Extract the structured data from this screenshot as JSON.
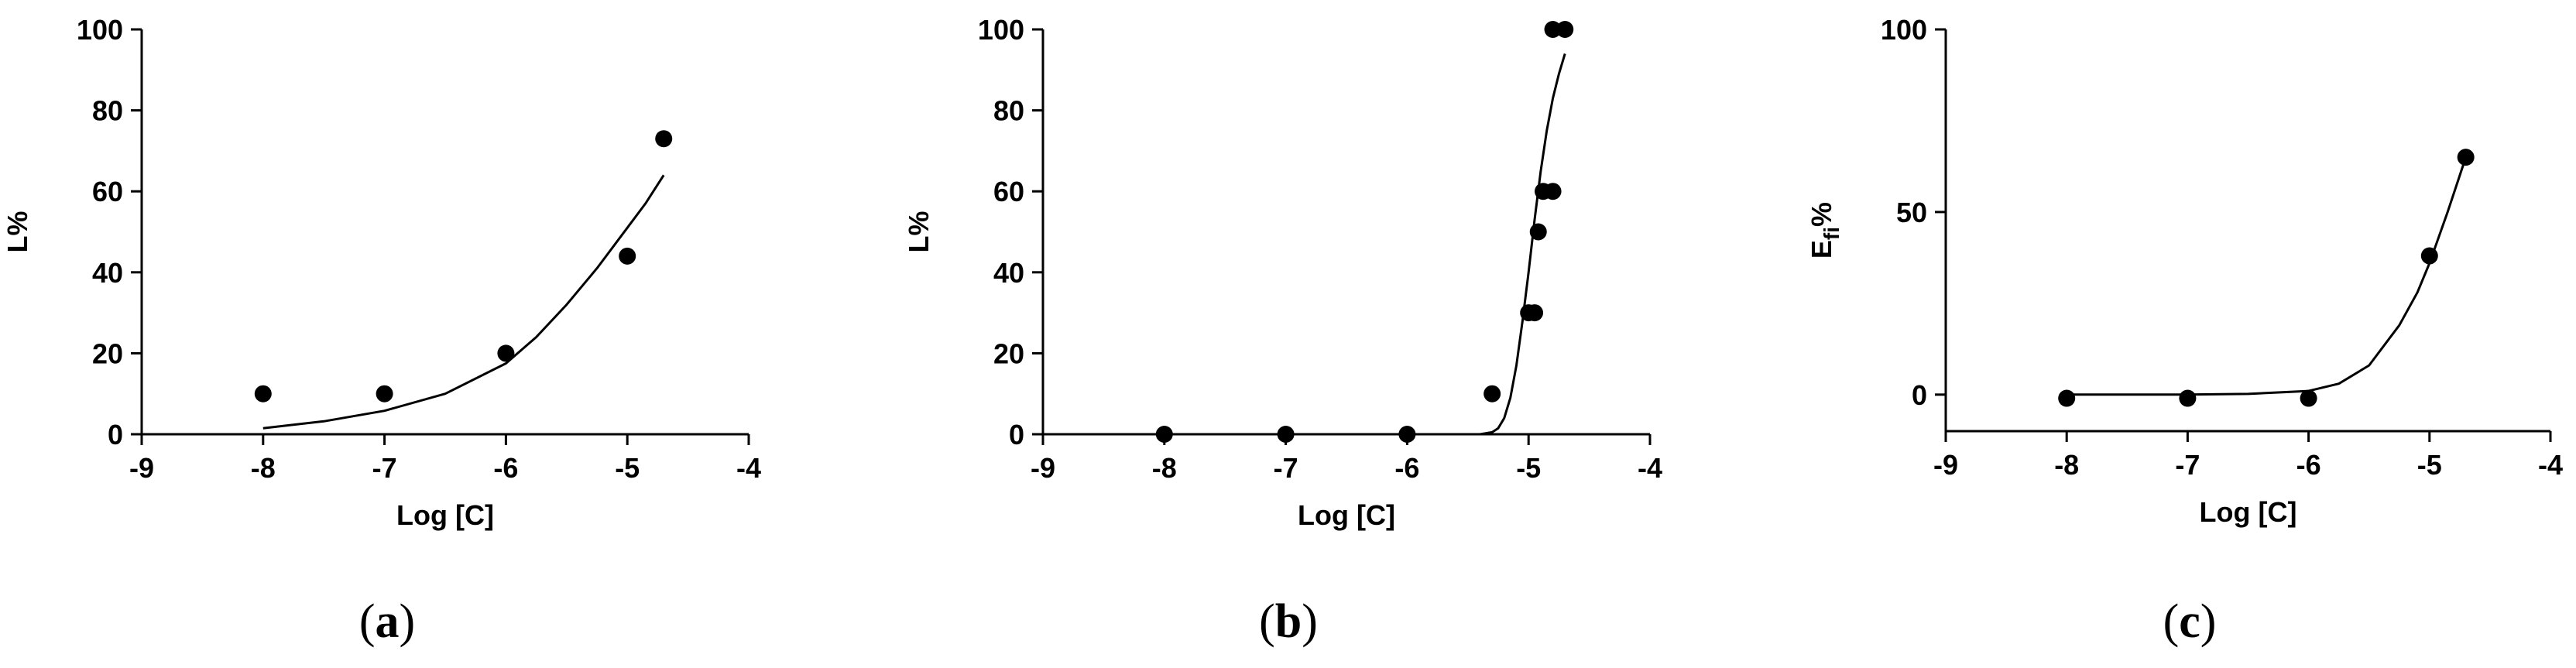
{
  "chart_data": [
    {
      "type": "scatter",
      "panel_label": "a",
      "xlabel": "Log [C]",
      "ylabel": "L%",
      "ylabel_sub": "",
      "xlim": [
        -9,
        -4
      ],
      "ylim": [
        0,
        100
      ],
      "xticks": [
        "-9",
        "-8",
        "-7",
        "-6",
        "-5",
        "-4"
      ],
      "yticks": [
        "0",
        "20",
        "40",
        "60",
        "80",
        "100"
      ],
      "grid": false,
      "points": [
        {
          "x": -8,
          "y": 10
        },
        {
          "x": -7,
          "y": 10
        },
        {
          "x": -6,
          "y": 20
        },
        {
          "x": -5,
          "y": 44
        },
        {
          "x": -4.7,
          "y": 73
        }
      ],
      "fit_curve": [
        [
          -8,
          1.5
        ],
        [
          -7.5,
          3.2
        ],
        [
          -7,
          5.8
        ],
        [
          -6.5,
          10
        ],
        [
          -6,
          17.5
        ],
        [
          -5.75,
          24
        ],
        [
          -5.5,
          32
        ],
        [
          -5.25,
          41
        ],
        [
          -5,
          51
        ],
        [
          -4.85,
          57
        ],
        [
          -4.7,
          64
        ]
      ]
    },
    {
      "type": "scatter",
      "panel_label": "b",
      "xlabel": "Log [C]",
      "ylabel": "L%",
      "ylabel_sub": "",
      "xlim": [
        -9,
        -4
      ],
      "ylim": [
        0,
        100
      ],
      "xticks": [
        "-9",
        "-8",
        "-7",
        "-6",
        "-5",
        "-4"
      ],
      "yticks": [
        "0",
        "20",
        "40",
        "60",
        "80",
        "100"
      ],
      "grid": false,
      "points": [
        {
          "x": -8,
          "y": 0
        },
        {
          "x": -7,
          "y": 0
        },
        {
          "x": -6,
          "y": 0
        },
        {
          "x": -5.3,
          "y": 10
        },
        {
          "x": -5,
          "y": 30
        },
        {
          "x": -4.95,
          "y": 30
        },
        {
          "x": -4.92,
          "y": 50
        },
        {
          "x": -4.88,
          "y": 60
        },
        {
          "x": -4.8,
          "y": 60
        },
        {
          "x": -4.8,
          "y": 100
        },
        {
          "x": -4.7,
          "y": 100
        }
      ],
      "fit_curve": [
        [
          -8,
          0
        ],
        [
          -6,
          0
        ],
        [
          -5.4,
          0
        ],
        [
          -5.3,
          0.5
        ],
        [
          -5.25,
          1.5
        ],
        [
          -5.2,
          4
        ],
        [
          -5.15,
          9
        ],
        [
          -5.1,
          17
        ],
        [
          -5.05,
          28
        ],
        [
          -5,
          40
        ],
        [
          -4.95,
          53
        ],
        [
          -4.9,
          65
        ],
        [
          -4.85,
          75
        ],
        [
          -4.8,
          83
        ],
        [
          -4.75,
          89
        ],
        [
          -4.7,
          94
        ]
      ]
    },
    {
      "type": "scatter",
      "panel_label": "c",
      "xlabel": "Log [C]",
      "ylabel": "E",
      "ylabel_sub": "fi",
      "ylabel_suffix": "%",
      "xlim": [
        -9,
        -4
      ],
      "ylim": [
        -10,
        100
      ],
      "xticks": [
        "-9",
        "-8",
        "-7",
        "-6",
        "-5",
        "-4"
      ],
      "yticks": [
        "0",
        "50",
        "100"
      ],
      "ytick_values": [
        0,
        50,
        100
      ],
      "grid": false,
      "points": [
        {
          "x": -8,
          "y": -1
        },
        {
          "x": -7,
          "y": -1
        },
        {
          "x": -6,
          "y": -1
        },
        {
          "x": -5,
          "y": 38
        },
        {
          "x": -4.7,
          "y": 65
        }
      ],
      "fit_curve": [
        [
          -8,
          0
        ],
        [
          -7,
          0
        ],
        [
          -6.5,
          0.2
        ],
        [
          -6,
          1
        ],
        [
          -5.75,
          3
        ],
        [
          -5.5,
          8
        ],
        [
          -5.25,
          19
        ],
        [
          -5.1,
          28
        ],
        [
          -5,
          36
        ],
        [
          -4.85,
          50
        ],
        [
          -4.7,
          65
        ]
      ]
    }
  ]
}
